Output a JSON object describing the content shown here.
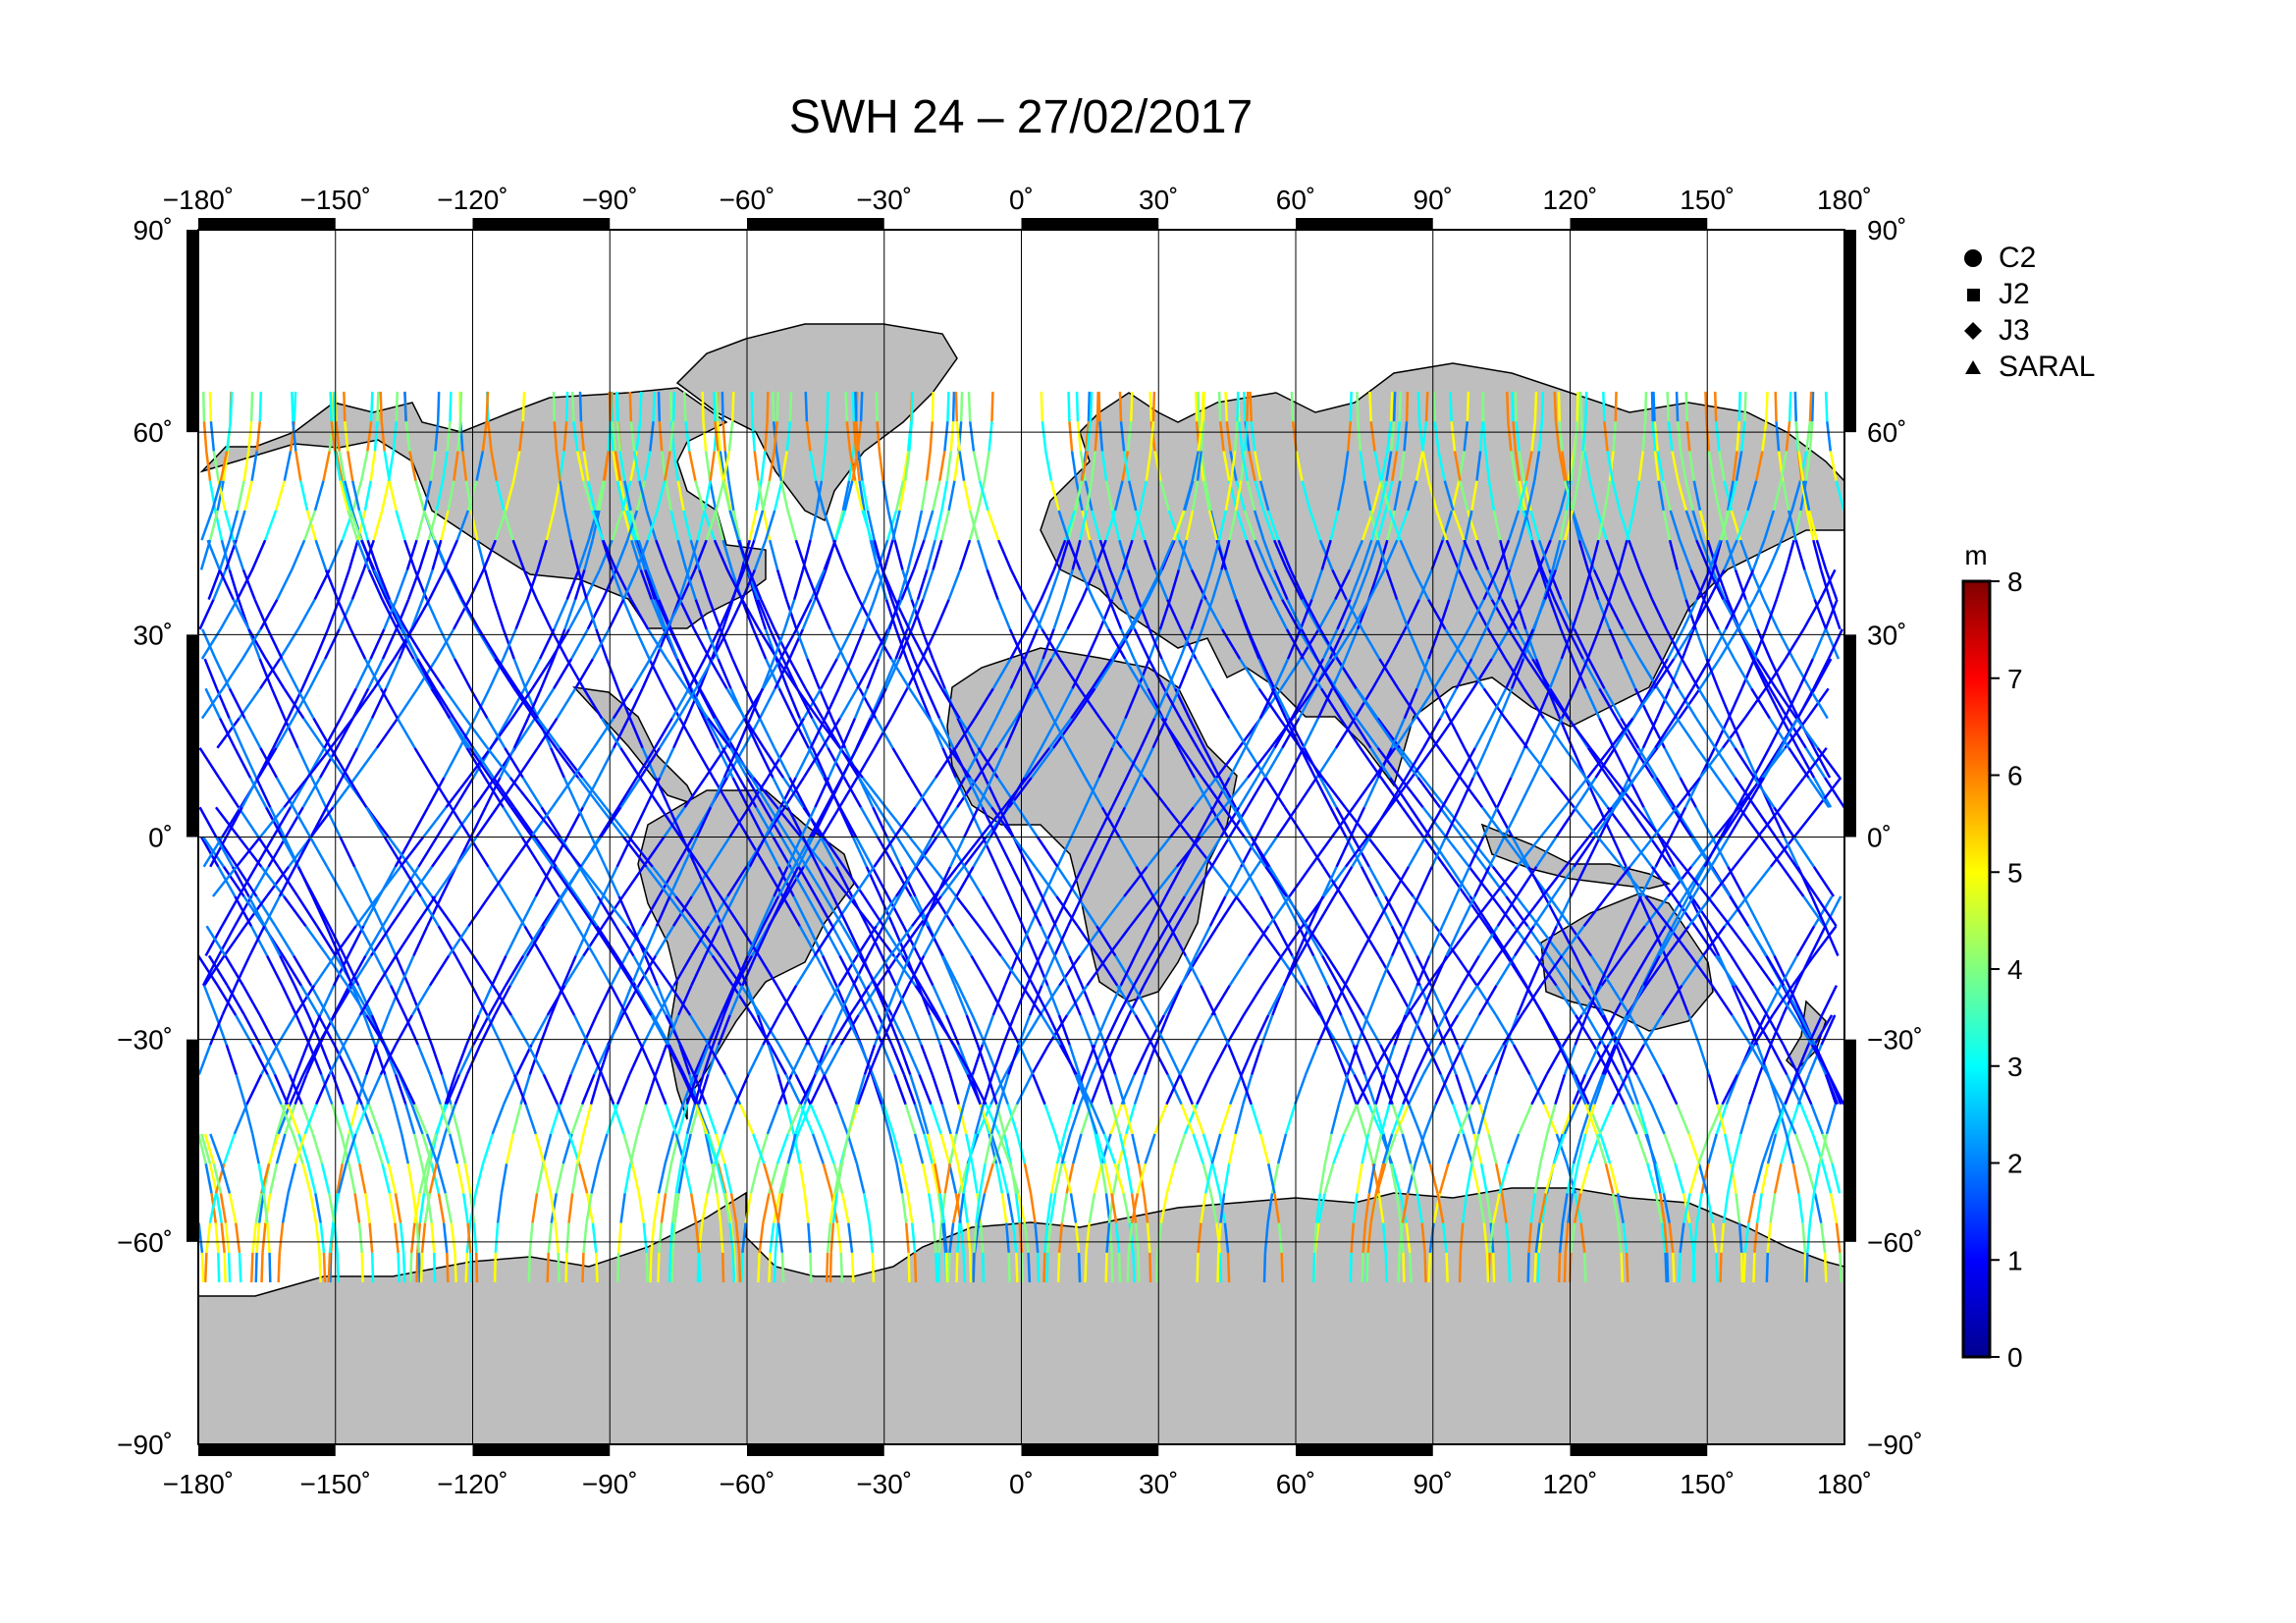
{
  "title": "SWH 24 – 27/02/2017",
  "map": {
    "lon_ticks": [
      "−180˚",
      "−150˚",
      "−120˚",
      "−90˚",
      "−60˚",
      "−30˚",
      "0˚",
      "30˚",
      "60˚",
      "90˚",
      "120˚",
      "150˚",
      "180˚"
    ],
    "lat_ticks": [
      "90˚",
      "60˚",
      "30˚",
      "0˚",
      "−30˚",
      "−60˚",
      "−90˚"
    ],
    "lat_ticks_right": [
      "90˚",
      "60˚",
      "30˚",
      "0˚",
      "−30˚",
      "−60˚",
      "−90˚"
    ],
    "lon_range": [
      -180,
      180
    ],
    "lat_range": [
      -90,
      90
    ],
    "land_color": "#bebebe",
    "ocean_color": "#ffffff",
    "grid": "on"
  },
  "legend": {
    "items": [
      {
        "label": "C2",
        "symbol": "circle"
      },
      {
        "label": "J2",
        "symbol": "square"
      },
      {
        "label": "J3",
        "symbol": "diamond"
      },
      {
        "label": "SARAL",
        "symbol": "triangle"
      }
    ]
  },
  "colorbar": {
    "unit": "m",
    "ticks": [
      "0",
      "1",
      "2",
      "3",
      "4",
      "5",
      "6",
      "7",
      "8"
    ],
    "range": [
      0,
      8
    ],
    "colors": [
      "#00008f",
      "#0000ff",
      "#0080ff",
      "#00ffff",
      "#80ff80",
      "#ffff00",
      "#ff8000",
      "#ff0000",
      "#800000"
    ]
  }
}
